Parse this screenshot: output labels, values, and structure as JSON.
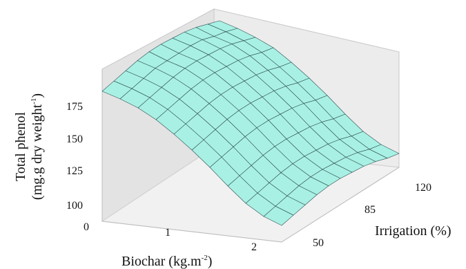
{
  "chart_data": {
    "type": "surface",
    "title": "",
    "zlabel": "Total phenol",
    "zlabel_units": {
      "base": "(mg.g dry weight",
      "sup": "-1",
      "tail": ")"
    },
    "xlabel": {
      "base": "Biochar (kg.m",
      "sup": "-2",
      "tail": ")"
    },
    "ylabel": "Irrigation (%)",
    "x_ticks": [
      "0",
      "1",
      "2"
    ],
    "y_ticks": [
      "50",
      "85",
      "120"
    ],
    "z_ticks": [
      "100",
      "125",
      "150",
      "175"
    ],
    "xlim": [
      0,
      2.5
    ],
    "ylim": [
      50,
      120
    ],
    "zlim": [
      95,
      205
    ],
    "surface_color": "#a8f0e4",
    "mesh_color": "#2f4f4f",
    "x": [
      0,
      0.25,
      0.5,
      0.75,
      1,
      1.25,
      1.5,
      1.75,
      2,
      2.25,
      2.5
    ],
    "y": [
      50,
      57,
      64,
      71,
      78,
      85,
      92,
      99,
      106,
      113,
      120
    ],
    "z": [
      [
        189,
        191,
        193,
        195,
        196,
        196,
        195,
        194,
        192,
        189,
        186
      ],
      [
        185,
        187,
        189,
        191,
        191,
        191,
        191,
        190,
        187,
        185,
        182
      ],
      [
        180,
        182,
        184,
        186,
        187,
        187,
        186,
        185,
        183,
        180,
        177
      ],
      [
        173,
        175,
        177,
        179,
        180,
        180,
        179,
        178,
        176,
        173,
        171
      ],
      [
        164,
        166,
        168,
        170,
        171,
        171,
        170,
        169,
        167,
        164,
        162
      ],
      [
        154,
        156,
        158,
        160,
        161,
        161,
        160,
        159,
        157,
        154,
        152
      ],
      [
        143,
        145,
        147,
        149,
        150,
        150,
        149,
        148,
        146,
        143,
        141
      ],
      [
        131,
        133,
        135,
        137,
        138,
        138,
        137,
        136,
        134,
        131,
        129
      ],
      [
        120,
        122,
        124,
        126,
        127,
        127,
        126,
        125,
        123,
        120,
        118
      ],
      [
        112,
        114,
        116,
        118,
        119,
        119,
        118,
        117,
        115,
        112,
        110
      ],
      [
        107,
        109,
        111,
        113,
        114,
        114,
        113,
        112,
        110,
        107,
        105
      ]
    ]
  }
}
